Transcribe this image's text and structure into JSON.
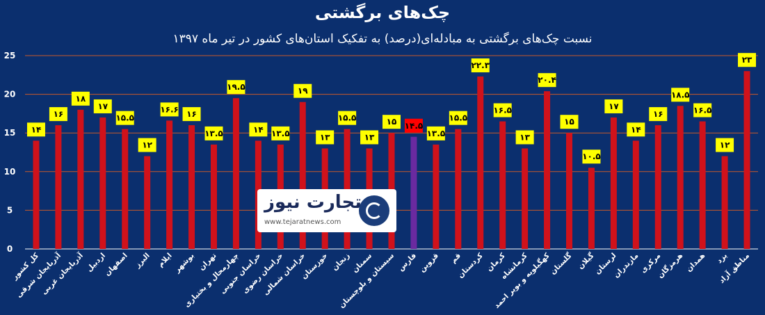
{
  "chart_data": {
    "type": "bar",
    "title": "چک‌های برگشتی",
    "subtitle": "نسبت چک‌های برگشتی به مبادله‌ای(درصد) به تفکیک استان‌های کشور در تیر ماه ۱۳۹۷",
    "ylim": [
      0,
      25
    ],
    "yticks": [
      "0",
      "5",
      "10",
      "15",
      "20",
      "25"
    ],
    "grid": true,
    "colors": {
      "bar": "#d0121b",
      "highlight_bar": "#6a2aa0",
      "label_bg": "#ffff00",
      "highlight_label_bg": "#ff0000",
      "grid": "#c85a2a",
      "background": "#0b2f6e"
    },
    "highlight_index": 17,
    "categories": [
      "کل کشور",
      "آذربایجان شرقی",
      "آذربایجان غربی",
      "اردبیل",
      "اصفهان",
      "البرز",
      "ایلام",
      "بوشهر",
      "تهران",
      "چهارمحال و بختیاری",
      "خراسان جنوبی",
      "خراسان رضوی",
      "خراسان شمالی",
      "خوزستان",
      "زنجان",
      "سمنان",
      "سیستان و بلوچستان",
      "فارس",
      "قزوین",
      "قم",
      "کردستان",
      "کرمان",
      "کرمانشاه",
      "کهگیلویه و بویر احمد",
      "گلستان",
      "گیلان",
      "لرستان",
      "مازندران",
      "مرکزی",
      "هرمزگان",
      "همدان",
      "یزد",
      "مناطق آزاد"
    ],
    "values": [
      14,
      16,
      18,
      17,
      15.5,
      12,
      16.6,
      16,
      13.5,
      19.5,
      14,
      13.5,
      19,
      13,
      15.5,
      13,
      15,
      14.5,
      13.5,
      15.5,
      22.3,
      16.5,
      13,
      20.4,
      15,
      10.5,
      17,
      14,
      16,
      18.5,
      16.5,
      12,
      23
    ],
    "data_labels": [
      "۱۴",
      "۱۶",
      "۱۸",
      "۱۷",
      "۱۵.۵",
      "۱۲",
      "۱۶.۶",
      "۱۶",
      "۱۳.۵",
      "۱۹.۵",
      "۱۴",
      "۱۳.۵",
      "۱۹",
      "۱۳",
      "۱۵.۵",
      "۱۳",
      "۱۵",
      "۱۴.۵",
      "۱۳.۵",
      "۱۵.۵",
      "۲۲.۳",
      "۱۶.۵",
      "۱۳",
      "۲۰.۴",
      "۱۵",
      "۱۰.۵",
      "۱۷",
      "۱۴",
      "۱۶",
      "۱۸.۵",
      "۱۶.۵",
      "۱۲",
      "۲۳"
    ]
  },
  "watermark": {
    "brand": "تجارت نیوز",
    "url": "www.tejaratnews.com",
    "logo_icon": "tejaratnews-logo-icon"
  }
}
